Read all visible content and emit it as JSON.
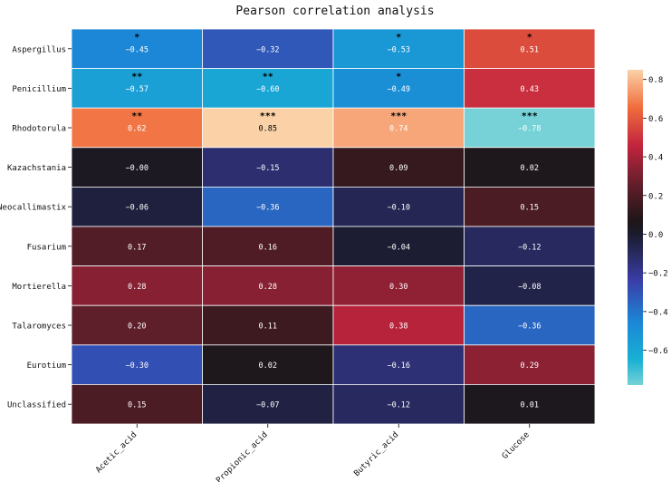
{
  "chart_data": {
    "type": "heatmap",
    "title": "Pearson correlation analysis",
    "rows": [
      "Aspergillus",
      "Penicillium",
      "Rhodotorula",
      "Kazachstania",
      "Neocallimastix",
      "Fusarium",
      "Mortierella",
      "Talaromyces",
      "Eurotium",
      "Unclassified"
    ],
    "columns": [
      "Acetic_acid",
      "Propionic_acid",
      "Butyric_acid",
      "Glucose"
    ],
    "values": [
      [
        -0.45,
        -0.32,
        -0.53,
        0.51
      ],
      [
        -0.57,
        -0.6,
        -0.49,
        0.43
      ],
      [
        0.62,
        0.85,
        0.74,
        -0.78
      ],
      [
        -0.0,
        -0.15,
        0.09,
        0.02
      ],
      [
        -0.06,
        -0.36,
        -0.1,
        0.15
      ],
      [
        0.17,
        0.16,
        -0.04,
        -0.12
      ],
      [
        0.28,
        0.28,
        0.3,
        -0.08
      ],
      [
        0.2,
        0.11,
        0.38,
        -0.36
      ],
      [
        -0.3,
        0.02,
        -0.16,
        0.29
      ],
      [
        0.15,
        -0.07,
        -0.12,
        0.01
      ]
    ],
    "value_labels": [
      [
        "−0.45",
        "−0.32",
        "−0.53",
        "0.51"
      ],
      [
        "−0.57",
        "−0.60",
        "−0.49",
        "0.43"
      ],
      [
        "0.62",
        "0.85",
        "0.74",
        "−0.78"
      ],
      [
        "−0.00",
        "−0.15",
        "0.09",
        "0.02"
      ],
      [
        "−0.06",
        "−0.36",
        "−0.10",
        "0.15"
      ],
      [
        "0.17",
        "0.16",
        "−0.04",
        "−0.12"
      ],
      [
        "0.28",
        "0.28",
        "0.30",
        "−0.08"
      ],
      [
        "0.20",
        "0.11",
        "0.38",
        "−0.36"
      ],
      [
        "−0.30",
        "0.02",
        "−0.16",
        "0.29"
      ],
      [
        "0.15",
        "−0.07",
        "−0.12",
        "0.01"
      ]
    ],
    "significance": [
      [
        "*",
        "",
        "*",
        "*"
      ],
      [
        "**",
        "**",
        "*",
        ""
      ],
      [
        "**",
        "***",
        "***",
        "***"
      ],
      [
        "",
        "",
        "",
        ""
      ],
      [
        "",
        "",
        "",
        ""
      ],
      [
        "",
        "",
        "",
        ""
      ],
      [
        "",
        "",
        "",
        ""
      ],
      [
        "",
        "",
        "",
        ""
      ],
      [
        "",
        "",
        "",
        ""
      ],
      [
        "",
        "",
        "",
        ""
      ]
    ],
    "colorbar": {
      "range": [
        -0.78,
        0.85
      ],
      "ticks": [
        -0.6,
        -0.4,
        -0.2,
        0.0,
        0.2,
        0.4,
        0.6,
        0.8
      ],
      "tick_labels": [
        "−0.6",
        "−0.4",
        "−0.2",
        "0.0",
        "0.2",
        "0.4",
        "0.6",
        "0.8"
      ],
      "colormap": "icefire"
    },
    "colors": {
      "cell_border": "#ffffff",
      "text_light": "#ffffff",
      "text_dark": "#000000"
    }
  }
}
